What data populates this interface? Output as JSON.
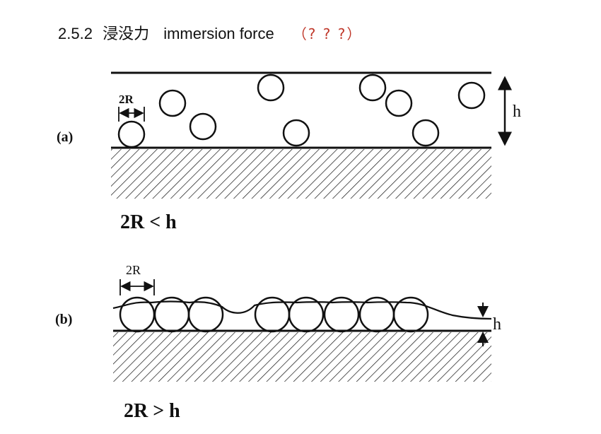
{
  "heading": {
    "number": "2.5.2",
    "chinese": "浸没力",
    "english": "immersion force",
    "question": "（? ? ?）"
  },
  "panel_a": {
    "tag": "(a)",
    "diameter_label": "2R",
    "height_label": "h",
    "condition": "2R < h"
  },
  "panel_b": {
    "tag": "(b)",
    "diameter_label": "2R",
    "height_label": "h",
    "condition": "2R > h"
  },
  "colors": {
    "ink": "#111111",
    "question": "#c0392b"
  }
}
